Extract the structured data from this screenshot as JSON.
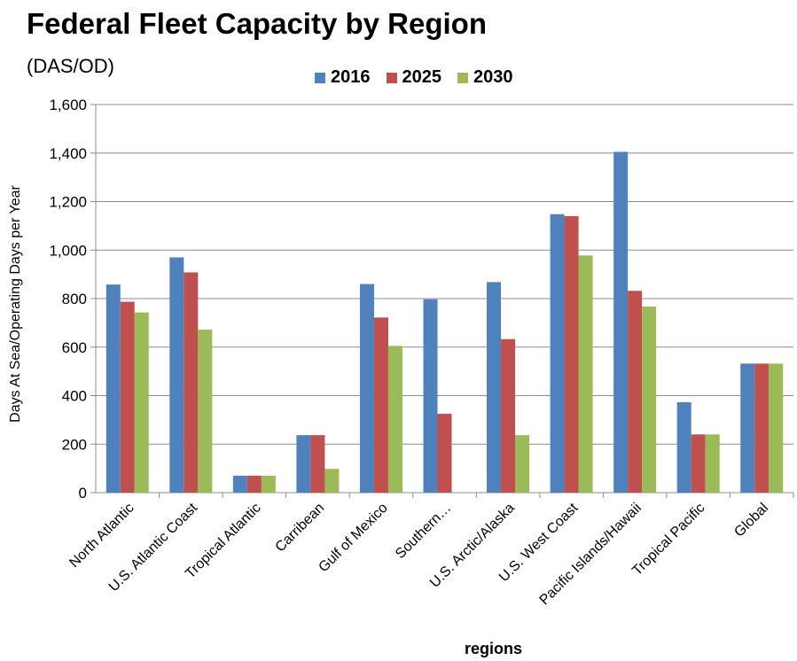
{
  "chart_data": {
    "type": "bar",
    "title": "Federal Fleet Capacity by Region",
    "subtitle": "(DAS/OD)",
    "xlabel": "regions",
    "ylabel": "Days At Sea/Operating Days per Year",
    "ylim": [
      0,
      1600
    ],
    "yticks": [
      0,
      200,
      400,
      600,
      800,
      1000,
      1200,
      1400,
      1600
    ],
    "ytick_labels": [
      "0",
      "200",
      "400",
      "600",
      "800",
      "1,000",
      "1,200",
      "1,400",
      "1,600"
    ],
    "grid": true,
    "legend_position": "top",
    "categories": [
      "North Atlantic",
      "U.S. Atlantic Coast",
      "Tropical Atlantic",
      "Carribean",
      "Gulf of Mexico",
      "Southern…",
      "U.S. Arctic/Alaska",
      "U.S. West Coast",
      "Pacific Islands/Hawaii",
      "Tropical Pacific",
      "Global"
    ],
    "series": [
      {
        "name": "2016",
        "color": "#4F81BD",
        "values": [
          858,
          970,
          70,
          237,
          860,
          797,
          868,
          1148,
          1405,
          373,
          532
        ]
      },
      {
        "name": "2025",
        "color": "#C0504D",
        "values": [
          787,
          908,
          70,
          237,
          722,
          325,
          633,
          1140,
          832,
          240,
          532
        ]
      },
      {
        "name": "2030",
        "color": "#9BBB59",
        "values": [
          743,
          672,
          70,
          98,
          605,
          0,
          237,
          978,
          767,
          240,
          532
        ]
      }
    ]
  }
}
